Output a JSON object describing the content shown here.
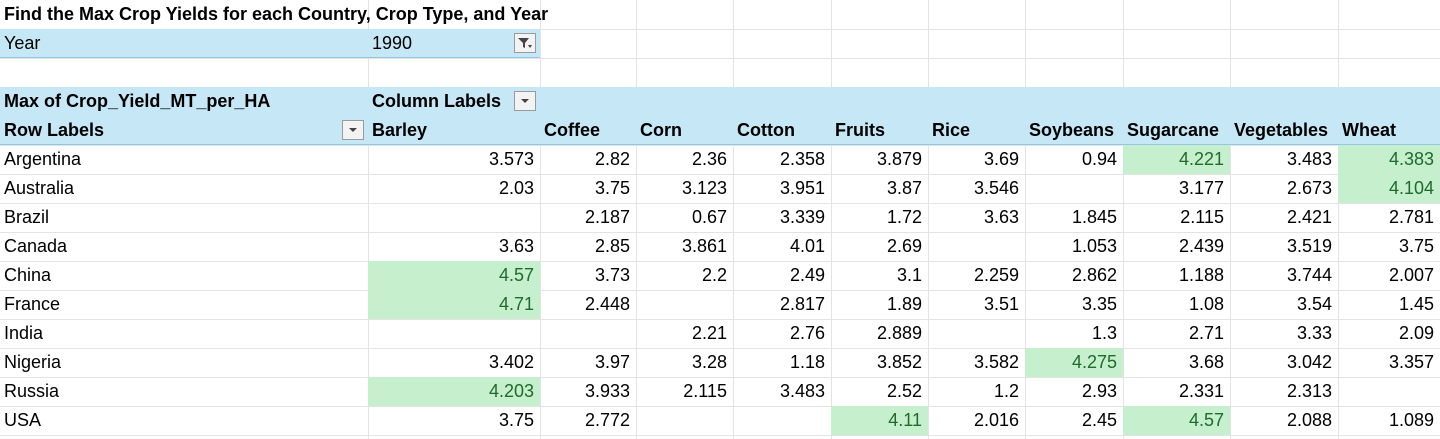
{
  "title": "Find the Max Crop Yields for each Country, Crop Type, and Year",
  "filter": {
    "label": "Year",
    "value": "1990"
  },
  "pivot": {
    "value_field": "Max of Crop_Yield_MT_per_HA",
    "column_labels": "Column Labels",
    "row_labels": "Row Labels",
    "columns": [
      "Barley",
      "Coffee",
      "Corn",
      "Cotton",
      "Fruits",
      "Rice",
      "Soybeans",
      "Sugarcane",
      "Vegetables",
      "Wheat"
    ],
    "rows": [
      {
        "country": "Argentina",
        "values": [
          "3.573",
          "2.82",
          "2.36",
          "2.358",
          "3.879",
          "3.69",
          "0.94",
          "4.221",
          "3.483",
          "4.383"
        ]
      },
      {
        "country": "Australia",
        "values": [
          "2.03",
          "3.75",
          "3.123",
          "3.951",
          "3.87",
          "3.546",
          "",
          "3.177",
          "2.673",
          "4.104"
        ]
      },
      {
        "country": "Brazil",
        "values": [
          "",
          "2.187",
          "0.67",
          "3.339",
          "1.72",
          "3.63",
          "1.845",
          "2.115",
          "2.421",
          "2.781"
        ]
      },
      {
        "country": "Canada",
        "values": [
          "3.63",
          "2.85",
          "3.861",
          "4.01",
          "2.69",
          "",
          "1.053",
          "2.439",
          "3.519",
          "3.75"
        ]
      },
      {
        "country": "China",
        "values": [
          "4.57",
          "3.73",
          "2.2",
          "2.49",
          "3.1",
          "2.259",
          "2.862",
          "1.188",
          "3.744",
          "2.007"
        ]
      },
      {
        "country": "France",
        "values": [
          "4.71",
          "2.448",
          "",
          "2.817",
          "1.89",
          "3.51",
          "3.35",
          "1.08",
          "3.54",
          "1.45"
        ]
      },
      {
        "country": "India",
        "values": [
          "",
          "",
          "2.21",
          "2.76",
          "2.889",
          "",
          "1.3",
          "2.71",
          "3.33",
          "2.09"
        ]
      },
      {
        "country": "Nigeria",
        "values": [
          "3.402",
          "3.97",
          "3.28",
          "1.18",
          "3.852",
          "3.582",
          "4.275",
          "3.68",
          "3.042",
          "3.357"
        ]
      },
      {
        "country": "Russia",
        "values": [
          "4.203",
          "3.933",
          "2.115",
          "3.483",
          "2.52",
          "1.2",
          "2.93",
          "2.331",
          "2.313",
          ""
        ]
      },
      {
        "country": "USA",
        "values": [
          "3.75",
          "2.772",
          "",
          "",
          "4.11",
          "2.016",
          "2.45",
          "4.57",
          "2.088",
          "1.089"
        ]
      }
    ],
    "highlights": [
      {
        "row": 0,
        "col": 7
      },
      {
        "row": 0,
        "col": 9
      },
      {
        "row": 1,
        "col": 9
      },
      {
        "row": 4,
        "col": 0
      },
      {
        "row": 5,
        "col": 0
      },
      {
        "row": 7,
        "col": 6
      },
      {
        "row": 8,
        "col": 0
      },
      {
        "row": 9,
        "col": 4
      },
      {
        "row": 9,
        "col": 7
      }
    ],
    "highlight_color": "#c6efce",
    "highlight_text_color": "#1f6b2a",
    "header_fill": "#c6e7f5"
  },
  "icons": {
    "filter_button": "filter-funnel-icon",
    "dropdown_button": "chevron-down-icon"
  }
}
